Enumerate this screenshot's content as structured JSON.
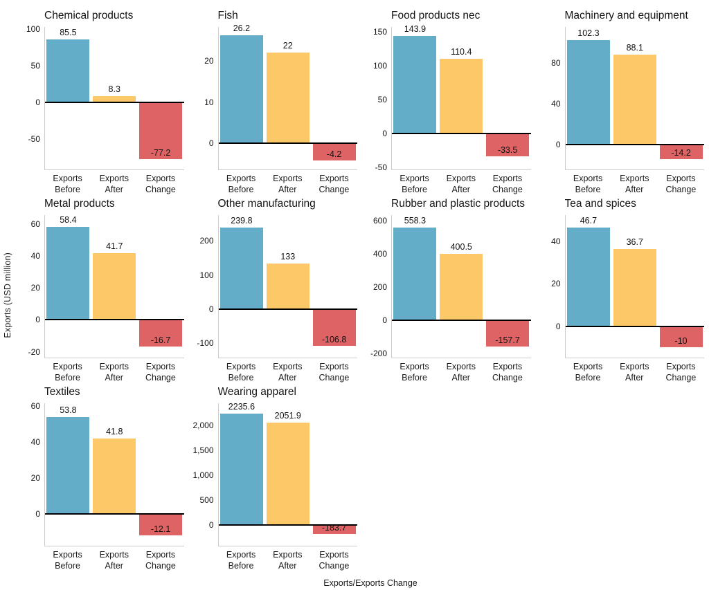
{
  "figure": {
    "ylabel": "Exports (USD million)",
    "xlabel": "Exports/Exports Change",
    "background": "#ffffff",
    "colors": {
      "exports_before": "#63ADC9",
      "exports_after": "#FDC868",
      "exports_change": "#DE6364",
      "zero_line": "#000000",
      "spine": "#cbcbcb",
      "text": "#141414"
    },
    "category_labels": [
      {
        "line1": "Exports",
        "line2": "Before"
      },
      {
        "line1": "Exports",
        "line2": "After"
      },
      {
        "line1": "Exports",
        "line2": "Change"
      }
    ]
  },
  "chart_data": [
    {
      "type": "bar",
      "title": "Chemical products",
      "categories": [
        "Exports Before",
        "Exports After",
        "Exports Change"
      ],
      "values": [
        85.5,
        8.3,
        -77.2
      ],
      "value_labels": [
        "85.5",
        "8.3",
        "-77.2"
      ],
      "ylim": [
        -91.6,
        102.8
      ],
      "yticks": [
        {
          "v": 100,
          "t": "100"
        },
        {
          "v": 50,
          "t": "50"
        },
        {
          "v": 0,
          "t": "0"
        },
        {
          "v": -50,
          "t": "-50"
        }
      ]
    },
    {
      "type": "bar",
      "title": "Fish",
      "categories": [
        "Exports Before",
        "Exports After",
        "Exports Change"
      ],
      "values": [
        26.2,
        22,
        -4.2
      ],
      "value_labels": [
        "26.2",
        "22",
        "-4.2"
      ],
      "ylim": [
        -6.4,
        28.3
      ],
      "yticks": [
        {
          "v": 20,
          "t": "20"
        },
        {
          "v": 10,
          "t": "10"
        },
        {
          "v": 0,
          "t": "0"
        }
      ]
    },
    {
      "type": "bar",
      "title": "Food products nec",
      "categories": [
        "Exports Before",
        "Exports After",
        "Exports Change"
      ],
      "values": [
        143.9,
        110.4,
        -33.5
      ],
      "value_labels": [
        "143.9",
        "110.4",
        "-33.5"
      ],
      "ylim": [
        -52.7,
        157
      ],
      "yticks": [
        {
          "v": 150,
          "t": "150"
        },
        {
          "v": 100,
          "t": "100"
        },
        {
          "v": 50,
          "t": "50"
        },
        {
          "v": 0,
          "t": "0"
        },
        {
          "v": -50,
          "t": "-50"
        }
      ]
    },
    {
      "type": "bar",
      "title": "Machinery and equipment",
      "categories": [
        "Exports Before",
        "Exports After",
        "Exports Change"
      ],
      "values": [
        102.3,
        88.1,
        -14.2
      ],
      "value_labels": [
        "102.3",
        "88.1",
        "-14.2"
      ],
      "ylim": [
        -24.6,
        114.9
      ],
      "yticks": [
        {
          "v": 80,
          "t": "80"
        },
        {
          "v": 40,
          "t": "40"
        },
        {
          "v": 0,
          "t": "0"
        }
      ]
    },
    {
      "type": "bar",
      "title": "Metal products",
      "categories": [
        "Exports Before",
        "Exports After",
        "Exports Change"
      ],
      "values": [
        58.4,
        41.7,
        -16.7
      ],
      "value_labels": [
        "58.4",
        "41.7",
        "-16.7"
      ],
      "ylim": [
        -23.6,
        65.6
      ],
      "yticks": [
        {
          "v": 60,
          "t": "60"
        },
        {
          "v": 40,
          "t": "40"
        },
        {
          "v": 20,
          "t": "20"
        },
        {
          "v": 0,
          "t": "0"
        },
        {
          "v": -20,
          "t": "-20"
        }
      ]
    },
    {
      "type": "bar",
      "title": "Other manufacturing",
      "categories": [
        "Exports Before",
        "Exports After",
        "Exports Change"
      ],
      "values": [
        239.8,
        133,
        -106.8
      ],
      "value_labels": [
        "239.8",
        "133",
        "-106.8"
      ],
      "ylim": [
        -142,
        276
      ],
      "yticks": [
        {
          "v": 200,
          "t": "200"
        },
        {
          "v": 100,
          "t": "100"
        },
        {
          "v": 0,
          "t": "0"
        },
        {
          "v": -100,
          "t": "-100"
        }
      ]
    },
    {
      "type": "bar",
      "title": "Rubber and plastic products",
      "categories": [
        "Exports Before",
        "Exports After",
        "Exports Change"
      ],
      "values": [
        558.3,
        400.5,
        -157.7
      ],
      "value_labels": [
        "558.3",
        "400.5",
        "-157.7"
      ],
      "ylim": [
        -223,
        632
      ],
      "yticks": [
        {
          "v": 600,
          "t": "600"
        },
        {
          "v": 400,
          "t": "400"
        },
        {
          "v": 200,
          "t": "200"
        },
        {
          "v": 0,
          "t": "0"
        },
        {
          "v": -200,
          "t": "-200"
        }
      ]
    },
    {
      "type": "bar",
      "title": "Tea and spices",
      "categories": [
        "Exports Before",
        "Exports After",
        "Exports Change"
      ],
      "values": [
        46.7,
        36.7,
        -10
      ],
      "value_labels": [
        "46.7",
        "36.7",
        "-10"
      ],
      "ylim": [
        -14.9,
        52.6
      ],
      "yticks": [
        {
          "v": 40,
          "t": "40"
        },
        {
          "v": 20,
          "t": "20"
        },
        {
          "v": 0,
          "t": "0"
        }
      ]
    },
    {
      "type": "bar",
      "title": "Textiles",
      "categories": [
        "Exports Before",
        "Exports After",
        "Exports Change"
      ],
      "values": [
        53.8,
        41.8,
        -12.1
      ],
      "value_labels": [
        "53.8",
        "41.8",
        "-12.1"
      ],
      "ylim": [
        -17.8,
        61.5
      ],
      "yticks": [
        {
          "v": 60,
          "t": "60"
        },
        {
          "v": 40,
          "t": "40"
        },
        {
          "v": 20,
          "t": "20"
        },
        {
          "v": 0,
          "t": "0"
        }
      ]
    },
    {
      "type": "bar",
      "title": "Wearing apparel",
      "categories": [
        "Exports Before",
        "Exports After",
        "Exports Change"
      ],
      "values": [
        2235.6,
        2051.9,
        -183.7
      ],
      "value_labels": [
        "2235.6",
        "2051.9",
        "-183.7"
      ],
      "ylim": [
        -417,
        2444
      ],
      "yticks": [
        {
          "v": 2000,
          "t": "2,000"
        },
        {
          "v": 1500,
          "t": "1,500"
        },
        {
          "v": 1000,
          "t": "1,000"
        },
        {
          "v": 500,
          "t": "500"
        },
        {
          "v": 0,
          "t": "0"
        }
      ]
    }
  ]
}
